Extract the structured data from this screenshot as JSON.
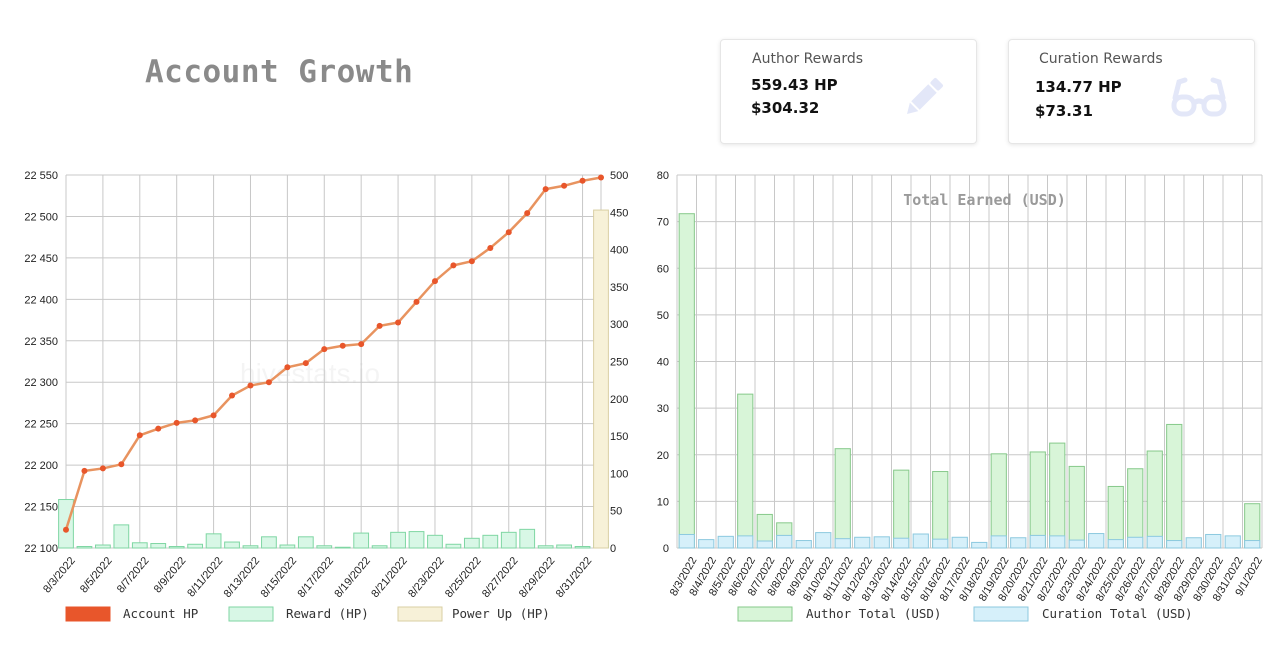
{
  "page": {
    "title": "Account Growth",
    "watermark": "hivestats.io"
  },
  "cards": {
    "author": {
      "title": "Author Rewards",
      "hp": "559.43 HP",
      "usd": "$304.32",
      "icon": "pencil-icon"
    },
    "curation": {
      "title": "Curation Rewards",
      "hp": "134.77 HP",
      "usd": "$73.31",
      "icon": "glasses-icon"
    }
  },
  "colors": {
    "account_hp": "#e8562b",
    "account_hp_line": "#e8935f",
    "reward_fill": "#d8f7e6",
    "reward_stroke": "#7fd6a3",
    "powerup_fill": "#f7f1d8",
    "powerup_stroke": "#d9cfa3",
    "author_fill": "#d8f5d8",
    "author_stroke": "#86c98a",
    "curation_fill": "#d6f0fa",
    "curation_stroke": "#8cc9df",
    "card_icon": "#e3e7f8"
  },
  "chart_data": [
    {
      "type": "line",
      "title": "",
      "x": [
        "8/3/2022",
        "8/4/2022",
        "8/5/2022",
        "8/6/2022",
        "8/7/2022",
        "8/8/2022",
        "8/9/2022",
        "8/10/2022",
        "8/11/2022",
        "8/12/2022",
        "8/13/2022",
        "8/14/2022",
        "8/15/2022",
        "8/16/2022",
        "8/17/2022",
        "8/18/2022",
        "8/19/2022",
        "8/20/2022",
        "8/21/2022",
        "8/22/2022",
        "8/23/2022",
        "8/24/2022",
        "8/25/2022",
        "8/26/2022",
        "8/27/2022",
        "8/28/2022",
        "8/29/2022",
        "8/30/2022",
        "8/31/2022",
        "9/1/2022"
      ],
      "xticklabels": [
        "8/3/2022",
        "8/5/2022",
        "8/7/2022",
        "8/9/2022",
        "8/11/2022",
        "8/13/2022",
        "8/15/2022",
        "8/17/2022",
        "8/19/2022",
        "8/21/2022",
        "8/23/2022",
        "8/25/2022",
        "8/27/2022",
        "8/29/2022",
        "8/31/2022"
      ],
      "series": [
        {
          "name": "Account HP",
          "kind": "line",
          "axis": "left",
          "values": [
            22122,
            22193,
            22196,
            22201,
            22236,
            22244,
            22251,
            22254,
            22260,
            22284,
            22296,
            22300,
            22318,
            22323,
            22340,
            22344,
            22346,
            22368,
            22372,
            22397,
            22422,
            22441,
            22446,
            22462,
            22481,
            22504,
            22533,
            22537,
            22543,
            22547
          ]
        },
        {
          "name": "Reward (HP)",
          "kind": "bar",
          "axis": "right",
          "values": [
            65,
            2,
            4,
            31,
            7,
            6,
            2,
            5,
            19,
            8,
            3,
            15,
            4,
            15,
            3,
            1,
            20,
            3,
            21,
            22,
            17,
            5,
            13,
            17,
            21,
            25,
            3,
            4,
            2,
            10
          ]
        },
        {
          "name": "Power Up (HP)",
          "kind": "bar",
          "axis": "right",
          "values": [
            0,
            0,
            0,
            0,
            0,
            0,
            0,
            0,
            0,
            0,
            0,
            0,
            0,
            0,
            0,
            0,
            0,
            0,
            0,
            0,
            0,
            0,
            0,
            0,
            0,
            0,
            0,
            0,
            0,
            453
          ]
        }
      ],
      "yleft": {
        "lim": [
          22100,
          22550
        ],
        "ticks": [
          "22 100",
          "22 150",
          "22 200",
          "22 250",
          "22 300",
          "22 350",
          "22 400",
          "22 450",
          "22 500",
          "22 550"
        ]
      },
      "yright": {
        "lim": [
          0,
          500
        ],
        "ticks": [
          "0",
          "50",
          "100",
          "150",
          "200",
          "250",
          "300",
          "350",
          "400",
          "450",
          "500"
        ]
      },
      "grid": true,
      "legend_position": "bottom"
    },
    {
      "type": "bar",
      "title": "Total Earned (USD)",
      "categories": [
        "8/3/2022",
        "8/4/2022",
        "8/5/2022",
        "8/6/2022",
        "8/7/2022",
        "8/8/2022",
        "8/9/2022",
        "8/10/2022",
        "8/11/2022",
        "8/12/2022",
        "8/13/2022",
        "8/14/2022",
        "8/15/2022",
        "8/16/2022",
        "8/17/2022",
        "8/18/2022",
        "8/19/2022",
        "8/20/2022",
        "8/21/2022",
        "8/22/2022",
        "8/23/2022",
        "8/24/2022",
        "8/25/2022",
        "8/26/2022",
        "8/27/2022",
        "8/28/2022",
        "8/29/2022",
        "8/30/2022",
        "8/31/2022",
        "9/1/2022"
      ],
      "series": [
        {
          "name": "Author Total (USD)",
          "values": [
            71.7,
            0,
            0,
            33,
            7.2,
            5.4,
            0,
            0,
            21.3,
            0,
            0,
            16.7,
            0,
            16.4,
            0,
            0,
            20.2,
            0,
            20.6,
            22.5,
            17.5,
            0,
            13.2,
            17,
            20.8,
            26.5,
            0,
            0,
            0,
            9.5
          ]
        },
        {
          "name": "Curation Total (USD)",
          "values": [
            2.9,
            1.8,
            2.5,
            2.6,
            1.5,
            2.7,
            1.6,
            3.3,
            2.0,
            2.3,
            2.4,
            2.1,
            3.0,
            1.9,
            2.3,
            1.2,
            2.6,
            2.2,
            2.7,
            2.6,
            1.7,
            3.1,
            1.8,
            2.3,
            2.5,
            1.6,
            2.2,
            2.9,
            2.6,
            1.6
          ]
        }
      ],
      "ylim": [
        0,
        80
      ],
      "yticks": [
        "0",
        "10",
        "20",
        "30",
        "40",
        "50",
        "60",
        "70",
        "80"
      ],
      "grid": true,
      "legend_position": "bottom"
    }
  ]
}
